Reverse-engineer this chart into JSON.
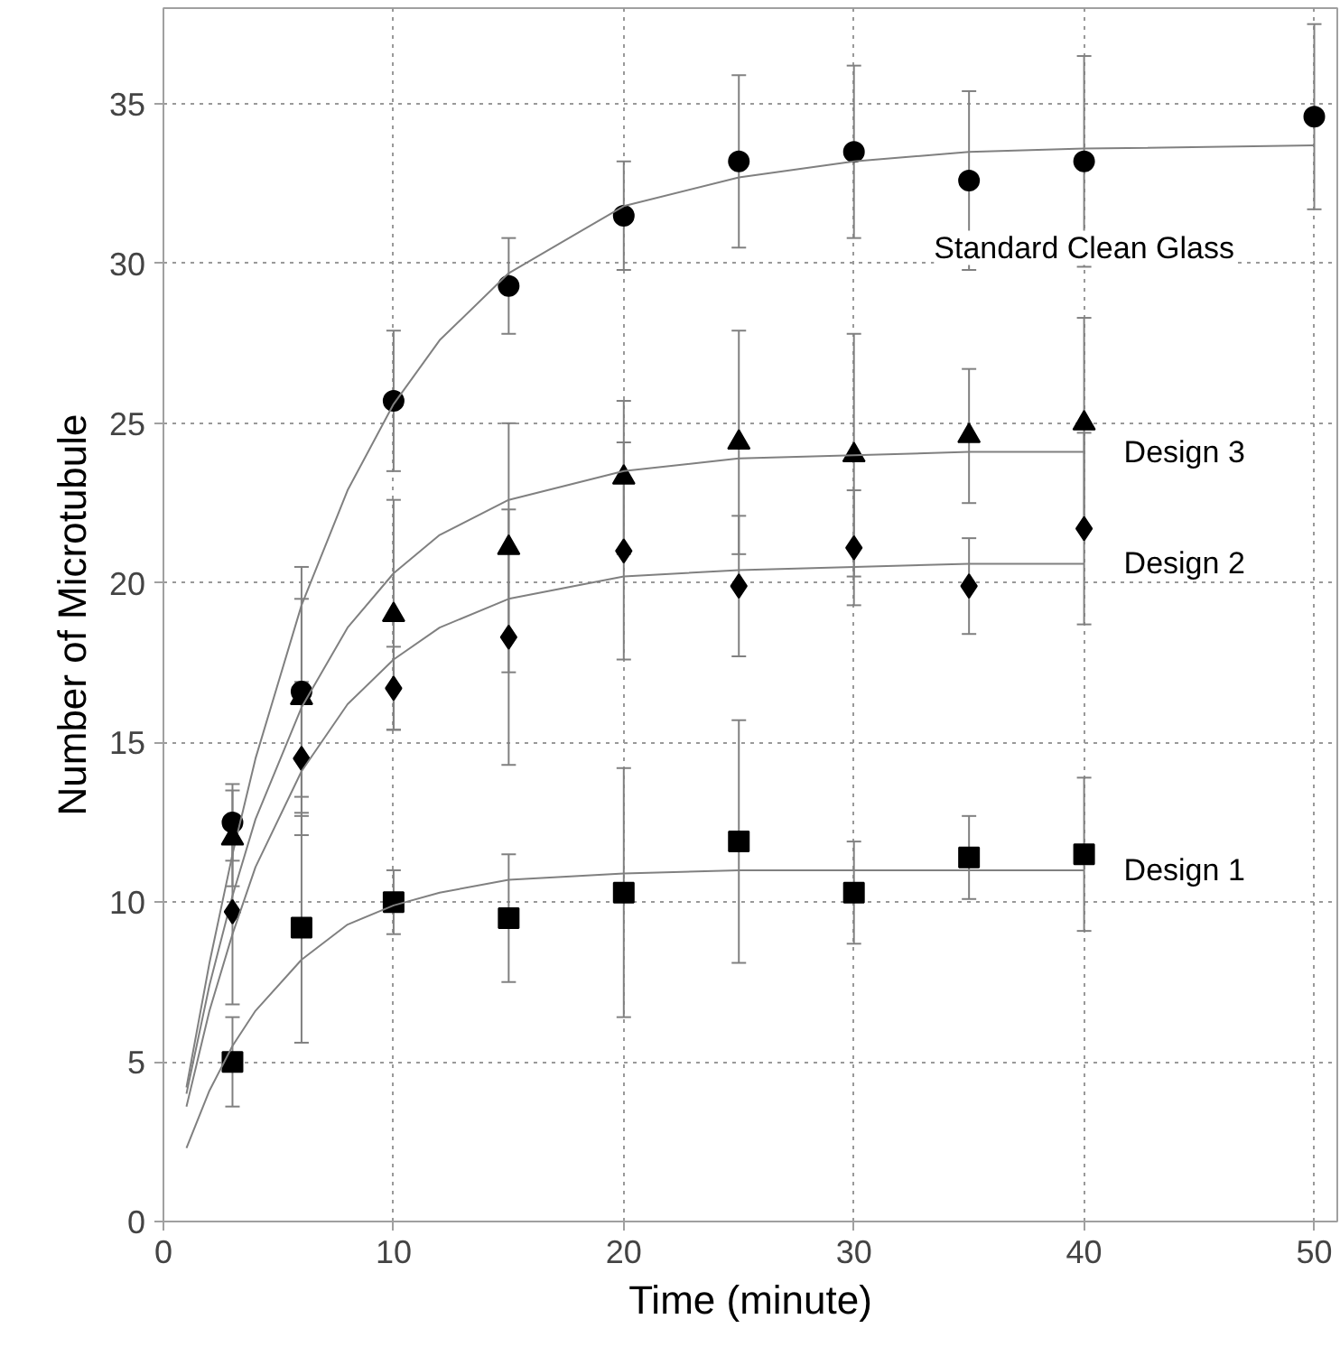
{
  "chart_data": {
    "type": "scatter",
    "xlabel": "Time (minute)",
    "ylabel": "Number of Microtubule",
    "xlim": [
      0,
      51
    ],
    "ylim": [
      0,
      38
    ],
    "xticks": [
      0,
      10,
      20,
      30,
      40,
      50
    ],
    "yticks": [
      0,
      5,
      10,
      15,
      20,
      25,
      30,
      35
    ],
    "grid": true,
    "legend": false,
    "line_style": "solid",
    "series": [
      {
        "name": "Standard Clean Glass",
        "marker": "circle",
        "color": "#000000",
        "x": [
          3,
          6,
          10,
          15,
          20,
          25,
          30,
          35,
          40,
          50
        ],
        "values": [
          12.5,
          16.6,
          25.7,
          29.3,
          31.5,
          33.2,
          33.5,
          32.6,
          33.2,
          34.6
        ],
        "errors": [
          1.2,
          3.9,
          2.2,
          1.5,
          1.7,
          2.7,
          2.7,
          2.8,
          3.3,
          2.9
        ]
      },
      {
        "type": "line",
        "marker": "none",
        "color": "#808080",
        "x": [
          1,
          2,
          3,
          4,
          6,
          8,
          10,
          12,
          15,
          20,
          25,
          30,
          35,
          40,
          50
        ],
        "values": [
          4.2,
          8.1,
          11.5,
          14.5,
          19.3,
          22.9,
          25.6,
          27.6,
          29.7,
          31.8,
          32.7,
          33.2,
          33.5,
          33.6,
          33.7
        ]
      },
      {
        "name": "Design 3",
        "marker": "triangle",
        "color": "#000000",
        "x": [
          3,
          6,
          10,
          15,
          20,
          25,
          30,
          35,
          40
        ],
        "values": [
          12.0,
          16.4,
          19.0,
          21.1,
          23.3,
          24.4,
          24.0,
          24.6,
          25.0
        ],
        "errors": [
          1.5,
          3.1,
          3.6,
          3.9,
          2.4,
          3.5,
          3.8,
          2.1,
          3.3
        ]
      },
      {
        "type": "line",
        "marker": "none",
        "color": "#808080",
        "x": [
          1,
          2,
          3,
          4,
          6,
          8,
          10,
          12,
          15,
          20,
          25,
          30,
          35,
          40
        ],
        "values": [
          4.0,
          7.4,
          10.2,
          12.6,
          16.1,
          18.6,
          20.3,
          21.5,
          22.6,
          23.5,
          23.9,
          24.0,
          24.1,
          24.1
        ]
      },
      {
        "name": "Design 2",
        "marker": "diamond",
        "color": "#000000",
        "x": [
          3,
          6,
          10,
          15,
          20,
          25,
          30,
          35,
          40
        ],
        "values": [
          9.7,
          14.5,
          16.7,
          18.3,
          21.0,
          19.9,
          21.1,
          19.9,
          21.7
        ],
        "errors": [
          2.9,
          2.4,
          1.3,
          4.0,
          3.4,
          2.2,
          1.8,
          1.5,
          3.0
        ]
      },
      {
        "type": "line",
        "marker": "none",
        "color": "#808080",
        "x": [
          1,
          2,
          3,
          4,
          6,
          8,
          10,
          12,
          15,
          20,
          25,
          30,
          35,
          40
        ],
        "values": [
          3.6,
          6.6,
          9.0,
          11.1,
          14.1,
          16.2,
          17.6,
          18.6,
          19.5,
          20.2,
          20.4,
          20.5,
          20.6,
          20.6
        ]
      },
      {
        "name": "Design 1",
        "marker": "square",
        "color": "#000000",
        "x": [
          3,
          6,
          10,
          15,
          20,
          25,
          30,
          35,
          40
        ],
        "values": [
          5.0,
          9.2,
          10.0,
          9.5,
          10.3,
          11.9,
          10.3,
          11.4,
          11.5
        ],
        "errors": [
          1.4,
          3.6,
          1.0,
          2.0,
          3.9,
          3.8,
          1.6,
          1.3,
          2.4
        ]
      },
      {
        "type": "line",
        "marker": "none",
        "color": "#808080",
        "x": [
          1,
          2,
          3,
          4,
          6,
          8,
          10,
          12,
          15,
          20,
          25,
          30,
          35,
          40
        ],
        "values": [
          2.3,
          4.1,
          5.5,
          6.6,
          8.2,
          9.3,
          9.9,
          10.3,
          10.7,
          10.9,
          11.0,
          11.0,
          11.0,
          11.0
        ]
      }
    ]
  }
}
